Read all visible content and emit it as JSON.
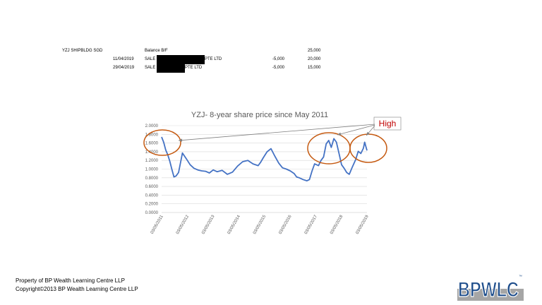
{
  "ledger": {
    "security": "YZJ SHIPBLDG SGD",
    "rows": [
      {
        "date": "",
        "desc": "Balance B/F",
        "suffix": "",
        "qty": "",
        "balance": "25,000"
      },
      {
        "date": "11/04/2019",
        "desc": "SALE",
        "suffix": "PTE LTD",
        "qty": "-5,000",
        "balance": "20,000"
      },
      {
        "date": "29/04/2019",
        "desc": "SALE",
        "suffix": "PTE LTD",
        "qty": "-5,000",
        "balance": "15,000"
      }
    ]
  },
  "chart_data": {
    "type": "line",
    "title": "YZJ- 8-year share price since May 2011",
    "xlabel": "",
    "ylabel": "",
    "ylim": [
      0,
      2
    ],
    "grid": true,
    "y_ticks": [
      "0.0000",
      "0.2000",
      "0.4000",
      "0.6000",
      "0.8000",
      "1.0000",
      "1.2000",
      "1.4000",
      "1.6000",
      "1.8000",
      "2.0000"
    ],
    "x_ticks": [
      "03/05/2011",
      "03/05/2012",
      "03/05/2013",
      "03/05/2014",
      "03/05/2015",
      "03/05/2016",
      "03/05/2017",
      "03/05/2018",
      "03/05/2019"
    ],
    "series": [
      {
        "color": "#4472c4",
        "x": [
          2011.34,
          2011.42,
          2011.5,
          2011.58,
          2011.66,
          2011.74,
          2011.82,
          2011.9,
          2012.0,
          2012.15,
          2012.3,
          2012.45,
          2012.6,
          2012.75,
          2012.9,
          2013.05,
          2013.2,
          2013.35,
          2013.5,
          2013.7,
          2013.9,
          2014.1,
          2014.3,
          2014.5,
          2014.7,
          2014.9,
          2015.1,
          2015.2,
          2015.3,
          2015.45,
          2015.6,
          2015.75,
          2015.9,
          2016.05,
          2016.2,
          2016.35,
          2016.5,
          2016.6,
          2016.7,
          2016.85,
          2017.0,
          2017.1,
          2017.2,
          2017.3,
          2017.45,
          2017.55,
          2017.65,
          2017.75,
          2017.85,
          2017.95,
          2018.05,
          2018.15,
          2018.25,
          2018.35,
          2018.45,
          2018.55,
          2018.65,
          2018.75,
          2018.9,
          2019.0,
          2019.1,
          2019.2,
          2019.25,
          2019.34
        ],
        "values": [
          1.74,
          1.62,
          1.44,
          1.33,
          1.18,
          0.99,
          0.82,
          0.84,
          0.92,
          1.37,
          1.24,
          1.1,
          1.02,
          0.98,
          0.96,
          0.95,
          0.91,
          0.98,
          0.94,
          0.97,
          0.88,
          0.93,
          1.07,
          1.17,
          1.2,
          1.12,
          1.08,
          1.16,
          1.26,
          1.4,
          1.47,
          1.3,
          1.14,
          1.03,
          1.0,
          0.96,
          0.9,
          0.82,
          0.8,
          0.76,
          0.73,
          0.76,
          0.96,
          1.12,
          1.08,
          1.2,
          1.28,
          1.58,
          1.66,
          1.5,
          1.7,
          1.62,
          1.36,
          1.1,
          1.02,
          0.92,
          0.88,
          1.02,
          1.22,
          1.41,
          1.36,
          1.48,
          1.62,
          1.43
        ]
      }
    ],
    "annotation": "High"
  },
  "footer": {
    "line1": "Property of BP Wealth Learning Centre LLP",
    "line2": "Copyright©2013 BP Wealth Learning Centre LLP"
  },
  "logo": {
    "text": "BPWLC",
    "tm": "™"
  },
  "colors": {
    "line": "#4472c4",
    "circle": "#c55a11",
    "annotation": "#c00000",
    "grid": "#d9d9d9",
    "logo_blue": "#1f4e8c",
    "logo_gray": "#a6a6a6"
  }
}
